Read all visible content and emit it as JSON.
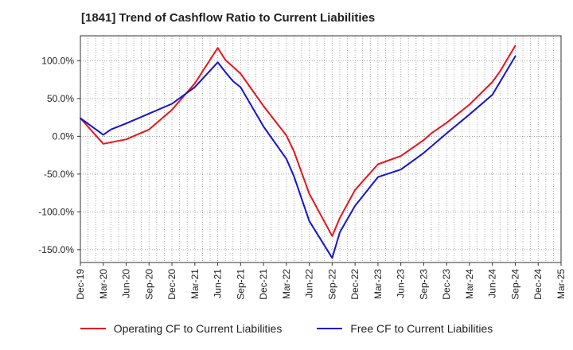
{
  "chart_data": {
    "type": "line",
    "title": "[1841]  Trend of Cashflow Ratio to Current Liabilities",
    "xlabel": "",
    "ylabel": "",
    "x_ticks": [
      "Dec-19",
      "Mar-20",
      "Jun-20",
      "Sep-20",
      "Dec-20",
      "Mar-21",
      "Jun-21",
      "Sep-21",
      "Dec-21",
      "Mar-22",
      "Jun-22",
      "Sep-22",
      "Dec-22",
      "Mar-23",
      "Jun-23",
      "Sep-23",
      "Dec-23",
      "Mar-24",
      "Jun-24",
      "Sep-24",
      "Dec-24",
      "Mar-25"
    ],
    "y_ticks": [
      100,
      50,
      0,
      -50,
      -100,
      -150
    ],
    "y_tick_labels": [
      "100.0%",
      "50.0%",
      "0.0%",
      "-50.0%",
      "-100.0%",
      "-150.0%"
    ],
    "ylim": [
      -167,
      133
    ],
    "grid": true,
    "legend_position": "bottom",
    "series": [
      {
        "name": "Operating CF to Current Liabilities",
        "color": "#e8141b",
        "x": [
          "Dec-19",
          "Mar-20",
          "Jun-20",
          "Sep-20",
          "Dec-20",
          "Mar-21",
          "Jun-21",
          "Jul-21",
          "Sep-21",
          "Dec-21",
          "Mar-22",
          "Apr-22",
          "Jun-22",
          "Sep-22",
          "Oct-22",
          "Dec-22",
          "Mar-23",
          "Jun-23",
          "Sep-23",
          "Oct-23",
          "Dec-23",
          "Mar-24",
          "Jun-24",
          "Jul-24",
          "Sep-24"
        ],
        "values": [
          24,
          -10,
          -4,
          9,
          35,
          70,
          117,
          101,
          83,
          40,
          1,
          -20,
          -76,
          -132,
          -108,
          -71,
          -37,
          -26,
          -5,
          4,
          18,
          42,
          72,
          86,
          120
        ]
      },
      {
        "name": "Free CF to Current Liabilities",
        "color": "#1414d2",
        "x": [
          "Dec-19",
          "Mar-20",
          "Apr-20",
          "Jun-20",
          "Sep-20",
          "Dec-20",
          "Mar-21",
          "Jun-21",
          "Jul-21",
          "Aug-21",
          "Sep-21",
          "Dec-21",
          "Mar-22",
          "Apr-22",
          "Jun-22",
          "Sep-22",
          "Oct-22",
          "Dec-22",
          "Mar-23",
          "Jun-23",
          "Sep-23",
          "Dec-23",
          "Mar-24",
          "Jun-24",
          "Jul-24",
          "Sep-24"
        ],
        "values": [
          24,
          2,
          9,
          17,
          30,
          43,
          65,
          98,
          85,
          73,
          65,
          13,
          -30,
          -53,
          -112,
          -161,
          -127,
          -92,
          -54,
          -44,
          -22,
          4,
          29,
          55,
          72,
          106
        ]
      }
    ]
  }
}
